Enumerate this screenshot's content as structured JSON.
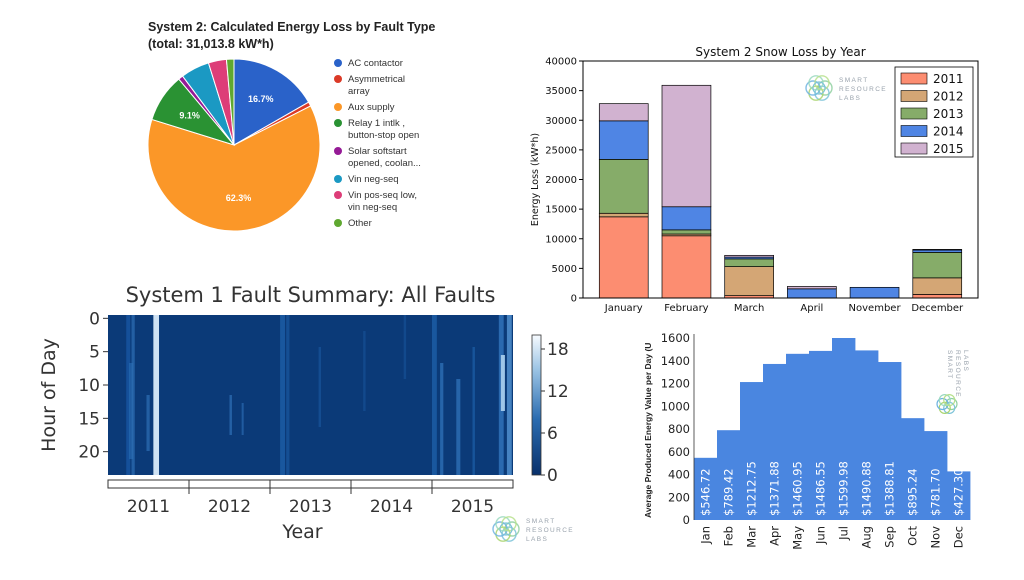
{
  "chart_data": [
    {
      "type": "pie",
      "title": "System 2: Calculated Energy Loss by Fault Type",
      "subtitle": "(total: 31,013.8 kW*h)",
      "slices": [
        {
          "name": "AC contactor",
          "value": 16.7,
          "label": "16.7%",
          "color": "#2a62c9"
        },
        {
          "name": "Asymmetrical array",
          "value": 0.8,
          "label": "",
          "color": "#db3a27"
        },
        {
          "name": "Aux supply",
          "value": 62.3,
          "label": "62.3%",
          "color": "#fb9728"
        },
        {
          "name": "Relay 1 intlk , button-stop open",
          "value": 9.1,
          "label": "9.1%",
          "color": "#2a9233"
        },
        {
          "name": "Solar softstart opened, coolan...",
          "value": 0.9,
          "label": "",
          "color": "#951a96"
        },
        {
          "name": "Vin neg-seq",
          "value": 5.4,
          "label": "",
          "color": "#1b99c3"
        },
        {
          "name": "Vin pos-seq low, vin neg-seq",
          "value": 3.4,
          "label": "",
          "color": "#dd3d78"
        },
        {
          "name": "Other",
          "value": 1.4,
          "label": "",
          "color": "#5fa830"
        }
      ],
      "legend_position": "right"
    },
    {
      "type": "bar",
      "stacked": true,
      "title": "System 2 Snow Loss by Year",
      "xlabel": "",
      "ylabel": "Energy Loss (kW*h)",
      "ylim": [
        0,
        40000
      ],
      "yticks": [
        0,
        5000,
        10000,
        15000,
        20000,
        25000,
        30000,
        35000,
        40000
      ],
      "categories": [
        "January",
        "February",
        "March",
        "April",
        "November",
        "December"
      ],
      "series": [
        {
          "name": "2011",
          "color": "#fc8d71",
          "values": [
            13700,
            10500,
            400,
            0,
            0,
            600
          ]
        },
        {
          "name": "2012",
          "color": "#d4a675",
          "values": [
            600,
            300,
            4900,
            0,
            0,
            2800
          ]
        },
        {
          "name": "2013",
          "color": "#86ac69",
          "values": [
            9100,
            700,
            1300,
            0,
            0,
            4300
          ]
        },
        {
          "name": "2014",
          "color": "#4f85e4",
          "values": [
            6500,
            3900,
            300,
            1550,
            1800,
            400
          ]
        },
        {
          "name": "2015",
          "color": "#d1b2d0",
          "values": [
            2900,
            20500,
            300,
            400,
            0,
            100
          ]
        }
      ],
      "legend_position": "top-right",
      "logo": {
        "words": [
          "SMART",
          "RESOURCE",
          "LABS"
        ]
      }
    },
    {
      "type": "heatmap",
      "title": "System 1 Fault Summary: All Faults",
      "xlabel": "Year",
      "ylabel": "Hour of Day",
      "x_ticks": [
        "2011",
        "2012",
        "2013",
        "2014",
        "2015"
      ],
      "y_ticks": [
        "0",
        "5",
        "10",
        "15",
        "20"
      ],
      "colorbar": {
        "min": 0,
        "max": 20,
        "ticks": [
          "0",
          "6",
          "12",
          "18"
        ]
      },
      "colormap": "Blues_r",
      "rows_hours": 24,
      "grid": false,
      "logo": {
        "words": [
          "SMART",
          "RESOURCE",
          "LABS"
        ]
      }
    },
    {
      "type": "bar",
      "title": "",
      "xlabel": "",
      "ylabel": "Average Produced Energy Value per Day (U",
      "ylim": [
        0,
        1600
      ],
      "yticks": [
        0,
        200,
        400,
        600,
        800,
        1000,
        1200,
        1400,
        1600
      ],
      "categories": [
        "Jan",
        "Feb",
        "Mar",
        "Apr",
        "May",
        "Jun",
        "Jul",
        "Aug",
        "Sep",
        "Oct",
        "Nov",
        "Dec"
      ],
      "values": [
        546.72,
        789.42,
        1212.75,
        1371.88,
        1460.95,
        1486.55,
        1599.98,
        1490.88,
        1388.81,
        895.24,
        781.7,
        427.3
      ],
      "labels": [
        "$546.72",
        "$789.42",
        "$1212.75",
        "$1371.88",
        "$1460.95",
        "$1486.55",
        "$1599.98",
        "$1490.88",
        "$1388.81",
        "$895.24",
        "$781.70",
        "$427.30"
      ],
      "color": "#4a86e0",
      "logo": {
        "words": [
          "SMART",
          "RESOURCE",
          "LABS"
        ]
      }
    }
  ]
}
